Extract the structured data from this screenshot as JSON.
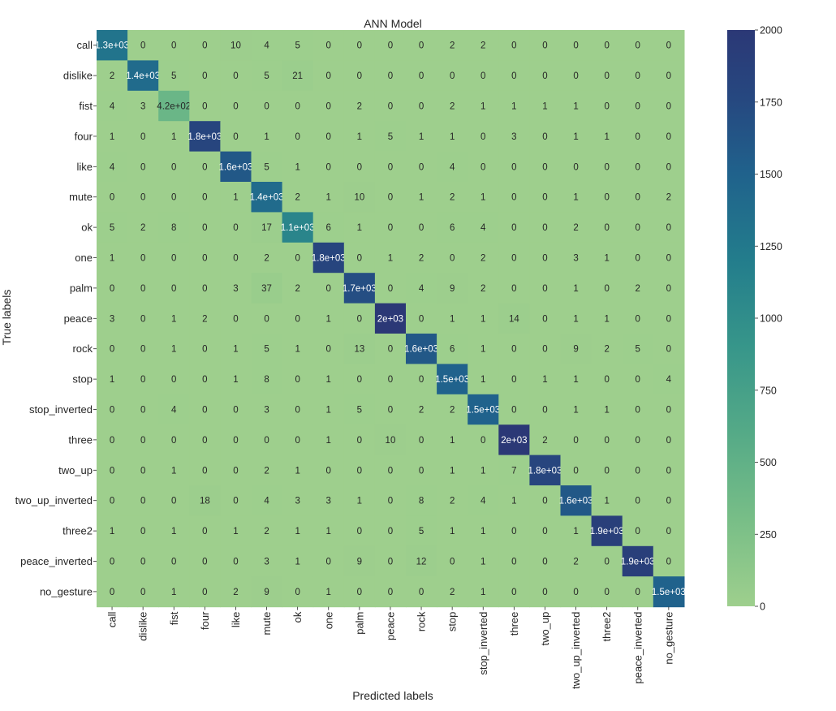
{
  "chart_data": {
    "type": "heatmap",
    "title": "ANN Model",
    "xlabel": "Predicted labels",
    "ylabel": "True labels",
    "row_labels": [
      "call",
      "dislike",
      "fist",
      "four",
      "like",
      "mute",
      "ok",
      "one",
      "palm",
      "peace",
      "rock",
      "stop",
      "stop_inverted",
      "three",
      "two_up",
      "two_up_inverted",
      "three2",
      "peace_inverted",
      "no_gesture"
    ],
    "col_labels": [
      "call",
      "dislike",
      "fist",
      "four",
      "like",
      "mute",
      "ok",
      "one",
      "palm",
      "peace",
      "rock",
      "stop",
      "stop_inverted",
      "three",
      "two_up",
      "two_up_inverted",
      "three2",
      "peace_inverted",
      "no_gesture"
    ],
    "values": [
      [
        1300,
        0,
        0,
        0,
        10,
        4,
        5,
        0,
        0,
        0,
        0,
        2,
        2,
        0,
        0,
        0,
        0,
        0,
        0
      ],
      [
        2,
        1400,
        5,
        0,
        0,
        5,
        21,
        0,
        0,
        0,
        0,
        0,
        0,
        0,
        0,
        0,
        0,
        0,
        0
      ],
      [
        4,
        3,
        420,
        0,
        0,
        0,
        0,
        0,
        2,
        0,
        0,
        2,
        1,
        1,
        1,
        1,
        0,
        0,
        0
      ],
      [
        1,
        0,
        1,
        1800,
        0,
        1,
        0,
        0,
        1,
        5,
        1,
        1,
        0,
        3,
        0,
        1,
        1,
        0,
        0
      ],
      [
        4,
        0,
        0,
        0,
        1600,
        5,
        1,
        0,
        0,
        0,
        0,
        4,
        0,
        0,
        0,
        0,
        0,
        0,
        0
      ],
      [
        0,
        0,
        0,
        0,
        1,
        1400,
        2,
        1,
        10,
        0,
        1,
        2,
        1,
        0,
        0,
        1,
        0,
        0,
        2
      ],
      [
        5,
        2,
        8,
        0,
        0,
        17,
        1100,
        6,
        1,
        0,
        0,
        6,
        4,
        0,
        0,
        2,
        0,
        0,
        0
      ],
      [
        1,
        0,
        0,
        0,
        0,
        2,
        0,
        1800,
        0,
        1,
        2,
        0,
        2,
        0,
        0,
        3,
        1,
        0,
        0
      ],
      [
        0,
        0,
        0,
        0,
        3,
        37,
        2,
        0,
        1700,
        0,
        4,
        9,
        2,
        0,
        0,
        1,
        0,
        2,
        0
      ],
      [
        3,
        0,
        1,
        2,
        0,
        0,
        0,
        1,
        0,
        2000,
        0,
        1,
        1,
        14,
        0,
        1,
        1,
        0,
        0
      ],
      [
        0,
        0,
        1,
        0,
        1,
        5,
        1,
        0,
        13,
        0,
        1600,
        6,
        1,
        0,
        0,
        9,
        2,
        5,
        0
      ],
      [
        1,
        0,
        0,
        0,
        1,
        8,
        0,
        1,
        0,
        0,
        0,
        1500,
        1,
        0,
        1,
        1,
        0,
        0,
        4
      ],
      [
        0,
        0,
        4,
        0,
        0,
        3,
        0,
        1,
        5,
        0,
        2,
        2,
        1500,
        0,
        0,
        1,
        1,
        0,
        0
      ],
      [
        0,
        0,
        0,
        0,
        0,
        0,
        0,
        1,
        0,
        10,
        0,
        1,
        0,
        2000,
        2,
        0,
        0,
        0,
        0
      ],
      [
        0,
        0,
        1,
        0,
        0,
        2,
        1,
        0,
        0,
        0,
        0,
        1,
        1,
        7,
        1800,
        0,
        0,
        0,
        0
      ],
      [
        0,
        0,
        0,
        18,
        0,
        4,
        3,
        3,
        1,
        0,
        8,
        2,
        4,
        1,
        0,
        1600,
        1,
        0,
        0
      ],
      [
        1,
        0,
        1,
        0,
        1,
        2,
        1,
        1,
        0,
        0,
        5,
        1,
        1,
        0,
        0,
        1,
        1900,
        0,
        0
      ],
      [
        0,
        0,
        0,
        0,
        0,
        3,
        1,
        0,
        9,
        0,
        12,
        0,
        1,
        0,
        0,
        2,
        0,
        1900,
        0
      ],
      [
        0,
        0,
        1,
        0,
        2,
        9,
        0,
        1,
        0,
        0,
        0,
        2,
        1,
        0,
        0,
        0,
        0,
        0,
        1500
      ]
    ],
    "cell_text": [
      [
        "1.3e+03",
        "0",
        "0",
        "0",
        "10",
        "4",
        "5",
        "0",
        "0",
        "0",
        "0",
        "2",
        "2",
        "0",
        "0",
        "0",
        "0",
        "0",
        "0"
      ],
      [
        "2",
        "1.4e+03",
        "5",
        "0",
        "0",
        "5",
        "21",
        "0",
        "0",
        "0",
        "0",
        "0",
        "0",
        "0",
        "0",
        "0",
        "0",
        "0",
        "0"
      ],
      [
        "4",
        "3",
        "4.2e+02",
        "0",
        "0",
        "0",
        "0",
        "0",
        "2",
        "0",
        "0",
        "2",
        "1",
        "1",
        "1",
        "1",
        "0",
        "0",
        "0"
      ],
      [
        "1",
        "0",
        "1",
        "1.8e+03",
        "0",
        "1",
        "0",
        "0",
        "1",
        "5",
        "1",
        "1",
        "0",
        "3",
        "0",
        "1",
        "1",
        "0",
        "0"
      ],
      [
        "4",
        "0",
        "0",
        "0",
        "1.6e+03",
        "5",
        "1",
        "0",
        "0",
        "0",
        "0",
        "4",
        "0",
        "0",
        "0",
        "0",
        "0",
        "0",
        "0"
      ],
      [
        "0",
        "0",
        "0",
        "0",
        "1",
        "1.4e+03",
        "2",
        "1",
        "10",
        "0",
        "1",
        "2",
        "1",
        "0",
        "0",
        "1",
        "0",
        "0",
        "2"
      ],
      [
        "5",
        "2",
        "8",
        "0",
        "0",
        "17",
        "1.1e+03",
        "6",
        "1",
        "0",
        "0",
        "6",
        "4",
        "0",
        "0",
        "2",
        "0",
        "0",
        "0"
      ],
      [
        "1",
        "0",
        "0",
        "0",
        "0",
        "2",
        "0",
        "1.8e+03",
        "0",
        "1",
        "2",
        "0",
        "2",
        "0",
        "0",
        "3",
        "1",
        "0",
        "0"
      ],
      [
        "0",
        "0",
        "0",
        "0",
        "3",
        "37",
        "2",
        "0",
        "1.7e+03",
        "0",
        "4",
        "9",
        "2",
        "0",
        "0",
        "1",
        "0",
        "2",
        "0"
      ],
      [
        "3",
        "0",
        "1",
        "2",
        "0",
        "0",
        "0",
        "1",
        "0",
        "2e+03",
        "0",
        "1",
        "1",
        "14",
        "0",
        "1",
        "1",
        "0",
        "0"
      ],
      [
        "0",
        "0",
        "1",
        "0",
        "1",
        "5",
        "1",
        "0",
        "13",
        "0",
        "1.6e+03",
        "6",
        "1",
        "0",
        "0",
        "9",
        "2",
        "5",
        "0"
      ],
      [
        "1",
        "0",
        "0",
        "0",
        "1",
        "8",
        "0",
        "1",
        "0",
        "0",
        "0",
        "1.5e+03",
        "1",
        "0",
        "1",
        "1",
        "0",
        "0",
        "4"
      ],
      [
        "0",
        "0",
        "4",
        "0",
        "0",
        "3",
        "0",
        "1",
        "5",
        "0",
        "2",
        "2",
        "1.5e+03",
        "0",
        "0",
        "1",
        "1",
        "0",
        "0"
      ],
      [
        "0",
        "0",
        "0",
        "0",
        "0",
        "0",
        "0",
        "1",
        "0",
        "10",
        "0",
        "1",
        "0",
        "2e+03",
        "2",
        "0",
        "0",
        "0",
        "0"
      ],
      [
        "0",
        "0",
        "1",
        "0",
        "0",
        "2",
        "1",
        "0",
        "0",
        "0",
        "0",
        "1",
        "1",
        "7",
        "1.8e+03",
        "0",
        "0",
        "0",
        "0"
      ],
      [
        "0",
        "0",
        "0",
        "18",
        "0",
        "4",
        "3",
        "3",
        "1",
        "0",
        "8",
        "2",
        "4",
        "1",
        "0",
        "1.6e+03",
        "1",
        "0",
        "0"
      ],
      [
        "1",
        "0",
        "1",
        "0",
        "1",
        "2",
        "1",
        "1",
        "0",
        "0",
        "5",
        "1",
        "1",
        "0",
        "0",
        "1",
        "1.9e+03",
        "0",
        "0"
      ],
      [
        "0",
        "0",
        "0",
        "0",
        "0",
        "3",
        "1",
        "0",
        "9",
        "0",
        "12",
        "0",
        "1",
        "0",
        "0",
        "2",
        "0",
        "1.9e+03",
        "0"
      ],
      [
        "0",
        "0",
        "1",
        "0",
        "2",
        "9",
        "0",
        "1",
        "0",
        "0",
        "0",
        "2",
        "1",
        "0",
        "0",
        "0",
        "0",
        "0",
        "1.5e+03"
      ]
    ],
    "colorbar": {
      "range": [
        0,
        2000
      ],
      "ticks": [
        "0",
        "250",
        "500",
        "750",
        "1000",
        "1250",
        "1500",
        "1750",
        "2000"
      ],
      "colormap": "crest"
    },
    "colors": {
      "low": "#9dcf8c",
      "high": "#2b3a7a"
    }
  }
}
